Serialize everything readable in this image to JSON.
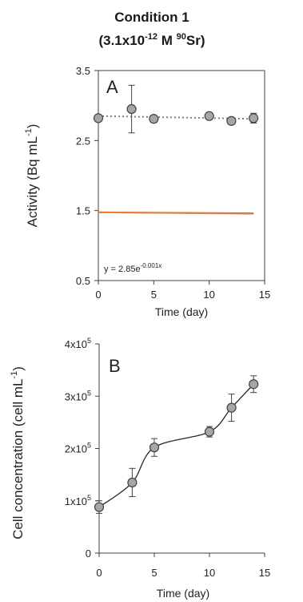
{
  "figure_title": {
    "line1": "Condition 1",
    "line2_prefix": "(3.1x10",
    "line2_exp": "-12",
    "line2_mid": " M ",
    "line2_sup": "90",
    "line2_suffix": "Sr)"
  },
  "chart_data": [
    {
      "type": "scatter",
      "panel": "A",
      "ylabel": {
        "text": "Activity (Bq mL",
        "sup": "-1",
        "close": ")"
      },
      "xlabel": "Time (day)",
      "xlim": [
        0,
        15
      ],
      "ylim": [
        0.5,
        3.5
      ],
      "xticks": [
        0,
        5,
        10,
        15
      ],
      "xtick_labels": [
        "0",
        "5",
        "10",
        "15"
      ],
      "yticks": [
        0.5,
        1.5,
        2.5,
        3.5
      ],
      "ytick_labels": [
        "0.5",
        "1.5",
        "2.5",
        "3.5"
      ],
      "series": [
        {
          "style": "markers+dotted-trend",
          "x": [
            0,
            3,
            5,
            10,
            12,
            14
          ],
          "y": [
            2.82,
            2.95,
            2.81,
            2.85,
            2.78,
            2.82
          ],
          "err": [
            0.02,
            0.34,
            0.05,
            0.04,
            0.05,
            0.07
          ],
          "trend_x": [
            0,
            14
          ],
          "trend_y": [
            2.85,
            2.81
          ]
        },
        {
          "style": "line",
          "x": [
            0,
            14
          ],
          "y": [
            1.475,
            1.46
          ],
          "color": "#4472c4"
        },
        {
          "style": "line",
          "x": [
            0,
            14
          ],
          "y": [
            1.475,
            1.455
          ],
          "color": "#ed7d31"
        }
      ],
      "annotation": {
        "text": "y = 2.85e",
        "sup": "-0.001x"
      },
      "grid": false,
      "colors": {
        "marker_fill": "#a6a6a6",
        "marker_edge": "#404040",
        "trend": "#7f7f7f"
      }
    },
    {
      "type": "line",
      "panel": "B",
      "ylabel": {
        "text": "Cell concentration (cell mL",
        "sup": "-1",
        "close": ")"
      },
      "xlabel": "Time (day)",
      "xlim": [
        0,
        15
      ],
      "ylim": [
        0,
        400000
      ],
      "xticks": [
        0,
        5,
        10,
        15
      ],
      "xtick_labels": [
        "0",
        "5",
        "10",
        "15"
      ],
      "yticks": [
        0,
        100000,
        200000,
        300000,
        400000
      ],
      "ytick_labels": [
        {
          "base": "0",
          "exp": ""
        },
        {
          "base": "1x10",
          "exp": "5"
        },
        {
          "base": "2x10",
          "exp": "5"
        },
        {
          "base": "3x10",
          "exp": "5"
        },
        {
          "base": "4x10",
          "exp": "5"
        }
      ],
      "series": [
        {
          "style": "markers+smooth-line",
          "x": [
            0,
            3,
            5,
            10,
            12,
            14
          ],
          "y": [
            88000,
            135000,
            202000,
            232000,
            278000,
            323000
          ],
          "err": [
            12000,
            27000,
            17000,
            10000,
            26000,
            16000
          ]
        }
      ],
      "grid": false,
      "colors": {
        "marker_fill": "#a6a6a6",
        "marker_edge": "#404040",
        "line": "#262626"
      }
    }
  ]
}
